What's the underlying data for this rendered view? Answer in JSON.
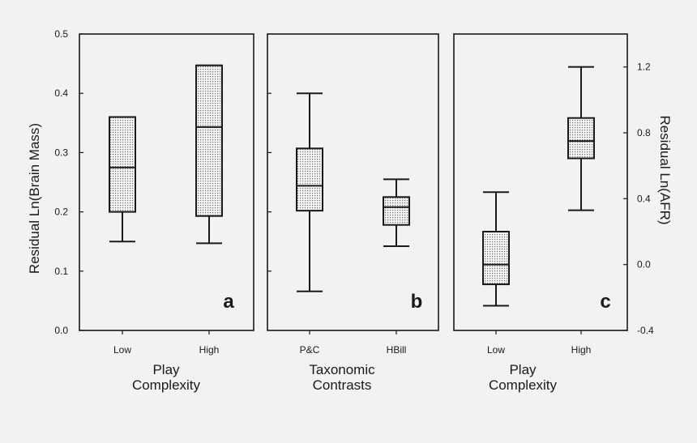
{
  "chart_data": [
    {
      "type": "box",
      "panel_label": "a",
      "xlabel": "Play\nComplexity",
      "ylabel": "Residual Ln(Brain Mass)",
      "y_axis_side": "left",
      "ylim": [
        0.0,
        0.5
      ],
      "yticks": [
        "0.0",
        "0.1",
        "0.2",
        "0.3",
        "0.4",
        "0.5"
      ],
      "categories": [
        "Low",
        "High"
      ],
      "boxes": [
        {
          "category": "Low",
          "min": 0.15,
          "q1": 0.2,
          "median": 0.275,
          "q3": 0.36,
          "max": 0.36
        },
        {
          "category": "High",
          "min": 0.147,
          "q1": 0.193,
          "median": 0.343,
          "q3": 0.447,
          "max": 0.447
        }
      ]
    },
    {
      "type": "box",
      "panel_label": "b",
      "xlabel": "Taxonomic\nContrasts",
      "ylabel": "",
      "y_axis_side": "left",
      "ylim": [
        0.0,
        0.5
      ],
      "yticks": [],
      "categories": [
        "P&C",
        "HBill"
      ],
      "boxes": [
        {
          "category": "P&C",
          "min": 0.066,
          "q1": 0.202,
          "median": 0.244,
          "q3": 0.307,
          "max": 0.4
        },
        {
          "category": "HBill",
          "min": 0.142,
          "q1": 0.178,
          "median": 0.208,
          "q3": 0.225,
          "max": 0.255
        }
      ]
    },
    {
      "type": "box",
      "panel_label": "c",
      "xlabel": "Play\nComplexity",
      "ylabel": "Residual Ln(AFR)",
      "y_axis_side": "right",
      "ylim": [
        -0.4,
        1.4
      ],
      "yticks": [
        "-0.4",
        "0.0",
        "0.4",
        "0.8",
        "1.2"
      ],
      "categories": [
        "Low",
        "High"
      ],
      "boxes": [
        {
          "category": "Low",
          "min": -0.25,
          "q1": -0.12,
          "median": 0.0,
          "q3": 0.2,
          "max": 0.44
        },
        {
          "category": "High",
          "min": 0.33,
          "q1": 0.645,
          "median": 0.75,
          "q3": 0.89,
          "max": 1.2
        }
      ]
    }
  ]
}
